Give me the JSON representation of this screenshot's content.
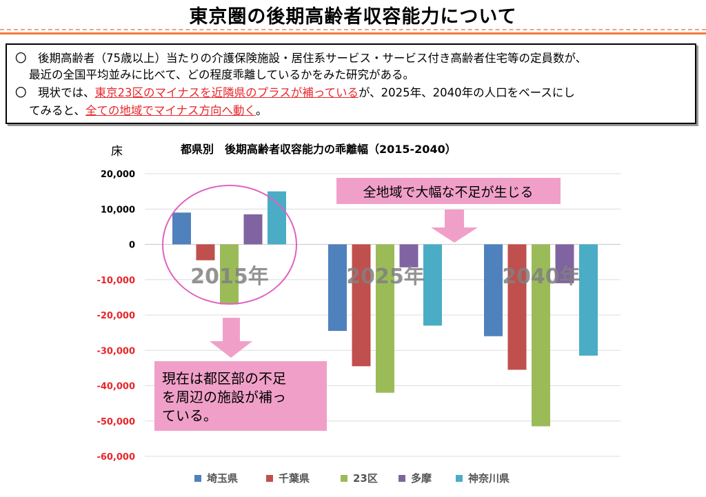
{
  "page": {
    "title": "東京圏の後期高齢者収容能力について"
  },
  "summary": {
    "line1": "〇　後期高齢者（75歳以上）当たりの介護保険施設・居住系サービス・サービス付き高齢者住宅等の定員数が、",
    "line2": "最近の全国平均並みに比べて、どの程度乖離しているかをみた研究がある。",
    "line3_prefix": "〇　現状では、",
    "line3_highlight": "東京23区のマイナスを近隣県のプラスが補っている",
    "line3_suffix": "が、2025年、2040年の人口をベースにし",
    "line4_prefix": "てみると、",
    "line4_highlight": "全ての地域でマイナス方向へ動く",
    "line4_suffix": "。"
  },
  "colors": {
    "highlight_text": "#e8262b",
    "pink_box": "#f0a0c8",
    "circle": "#e060c0",
    "negative_tick": "#e8262b",
    "positive_tick": "#000000"
  },
  "chart_data": {
    "type": "bar",
    "title": "都県別　後期高齢者収容能力の乖離幅（2015-2040）",
    "ylabel": "床",
    "categories": [
      "2015年",
      "2025年",
      "2040年"
    ],
    "ylim": [
      -60000,
      20000
    ],
    "yticks": [
      20000,
      10000,
      0,
      -10000,
      -20000,
      -30000,
      -40000,
      -50000,
      -60000
    ],
    "ytick_labels": [
      "20,000",
      "10,000",
      "0",
      "-10,000",
      "-20,000",
      "-30,000",
      "-40,000",
      "-50,000",
      "-60,000"
    ],
    "grid": true,
    "legend": "bottom",
    "series": [
      {
        "name": "埼玉県",
        "color": "#4f81bd",
        "values": [
          9000,
          -24500,
          -26000
        ]
      },
      {
        "name": "千葉県",
        "color": "#c0504d",
        "values": [
          -4500,
          -34500,
          -35500
        ]
      },
      {
        "name": "23区",
        "color": "#9bbb59",
        "values": [
          -17000,
          -42000,
          -51500
        ]
      },
      {
        "name": "多摩",
        "color": "#8064a2",
        "values": [
          8500,
          -6500,
          -11000
        ]
      },
      {
        "name": "神奈川県",
        "color": "#4bacc6",
        "values": [
          15000,
          -23000,
          -31500
        ]
      }
    ],
    "annotations": {
      "top_callout": "全地域で大幅な不足が生じる",
      "bottom_callout_lines": [
        "現在は都区部の不足",
        "を周辺の施設が補っ",
        "ている。"
      ]
    }
  }
}
